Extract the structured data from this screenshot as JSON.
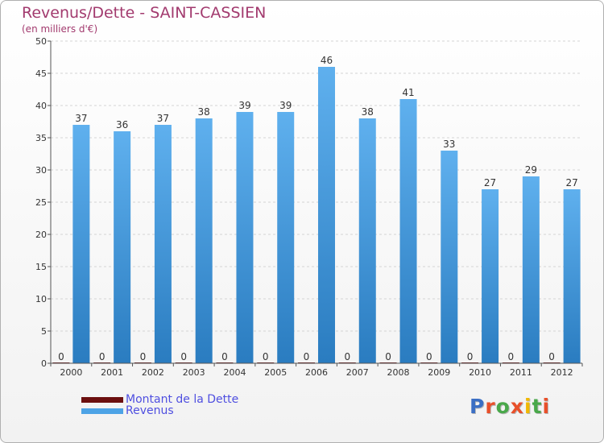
{
  "title": "Revenus/Dette - SAINT-CASSIEN",
  "subtitle": "(en milliers d'€)",
  "colors": {
    "dette": "#6b0f0f",
    "revenus": "#4da3e6",
    "title": "#a23a6e"
  },
  "legend": [
    {
      "label": "Montant de la Dette",
      "color": "#6b0f0f"
    },
    {
      "label": "Revenus",
      "color": "#4da3e6"
    }
  ],
  "logo": {
    "text": "Proxiti",
    "letter_colors": [
      "#3b6fc4",
      "#e8502a",
      "#49a84a",
      "#e8502a",
      "#f0b800",
      "#49a84a",
      "#e8502a"
    ]
  },
  "chart_data": {
    "type": "bar",
    "title": "Revenus/Dette - SAINT-CASSIEN",
    "subtitle": "(en milliers d'€)",
    "categories": [
      "2000",
      "2001",
      "2002",
      "2003",
      "2004",
      "2005",
      "2006",
      "2007",
      "2008",
      "2009",
      "2010",
      "2011",
      "2012"
    ],
    "series": [
      {
        "name": "Montant de la Dette",
        "values": [
          0,
          0,
          0,
          0,
          0,
          0,
          0,
          0,
          0,
          0,
          0,
          0,
          0
        ]
      },
      {
        "name": "Revenus",
        "values": [
          37,
          36,
          37,
          38,
          39,
          39,
          46,
          38,
          41,
          33,
          27,
          29,
          27
        ]
      }
    ],
    "ylim": [
      0,
      50
    ],
    "yticks": [
      0,
      5,
      10,
      15,
      20,
      25,
      30,
      35,
      40,
      45,
      50
    ],
    "grid": true,
    "legend_position": "bottom-left"
  }
}
